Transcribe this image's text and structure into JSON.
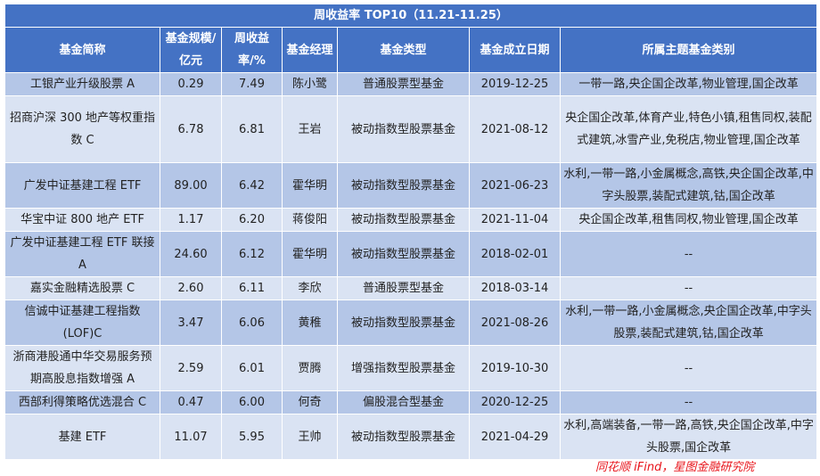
{
  "title": "周收益率 TOP10（11.21-11.25）",
  "columns": [
    "基金简称",
    "基金规模/亿元",
    "周收益率/%",
    "基金经理",
    "基金类型",
    "基金成立日期",
    "所属主题基金类别"
  ],
  "rows": [
    {
      "name": "工银产业升级股票 A",
      "size": "0.29",
      "return": "7.49",
      "manager": "陈小鹭",
      "type": "普通股票型基金",
      "date": "2019-12-25",
      "themes": "一带一路,央企国企改革,物业管理,国企改革"
    },
    {
      "name": "招商沪深 300 地产等权重指数 C",
      "size": "6.78",
      "return": "6.81",
      "manager": "王岩",
      "type": "被动指数型股票基金",
      "date": "2021-08-12",
      "themes": "央企国企改革,体育产业,特色小镇,租售同权,装配式建筑,冰雪产业,免税店,物业管理,国企改革"
    },
    {
      "name": "广发中证基建工程 ETF",
      "size": "89.00",
      "return": "6.42",
      "manager": "霍华明",
      "type": "被动指数型股票基金",
      "date": "2021-06-23",
      "themes": "水利,一带一路,小金属概念,高铁,央企国企改革,中字头股票,装配式建筑,钴,国企改革"
    },
    {
      "name": "华宝中证 800 地产 ETF",
      "size": "1.17",
      "return": "6.20",
      "manager": "蒋俊阳",
      "type": "被动指数型股票基金",
      "date": "2021-11-04",
      "themes": "央企国企改革,租售同权,物业管理,国企改革"
    },
    {
      "name": "广发中证基建工程 ETF 联接 A",
      "size": "24.60",
      "return": "6.12",
      "manager": "霍华明",
      "type": "被动指数型股票基金",
      "date": "2018-02-01",
      "themes": "--"
    },
    {
      "name": "嘉实金融精选股票 C",
      "size": "2.60",
      "return": "6.11",
      "manager": "李欣",
      "type": "普通股票型基金",
      "date": "2018-03-14",
      "themes": "--"
    },
    {
      "name": "信诚中证基建工程指数(LOF)C",
      "size": "3.47",
      "return": "6.06",
      "manager": "黄稚",
      "type": "被动指数型股票基金",
      "date": "2021-08-26",
      "themes": "水利,一带一路,小金属概念,央企国企改革,中字头股票,装配式建筑,钴,国企改革"
    },
    {
      "name": "浙商港股通中华交易服务预期高股息指数增强 A",
      "size": "2.59",
      "return": "6.01",
      "manager": "贾腾",
      "type": "增强指数型股票基金",
      "date": "2019-10-30",
      "themes": "--"
    },
    {
      "name": "西部利得策略优选混合 C",
      "size": "0.47",
      "return": "6.00",
      "manager": "何奇",
      "type": "偏股混合型基金",
      "date": "2020-12-25",
      "themes": "--"
    },
    {
      "name": "基建 ETF",
      "size": "11.07",
      "return": "5.95",
      "manager": "王帅",
      "type": "被动指数型股票基金",
      "date": "2021-04-29",
      "themes": "水利,高端装备,一带一路,高铁,央企国企改革,中字头股票,国企改革"
    }
  ],
  "source": "同花顺 iFind，星图金融研究院",
  "colors": {
    "header": "#4472c4",
    "row_dark": "#b4c6e7",
    "row_light": "#dae3f3",
    "source": "#e8141b"
  }
}
